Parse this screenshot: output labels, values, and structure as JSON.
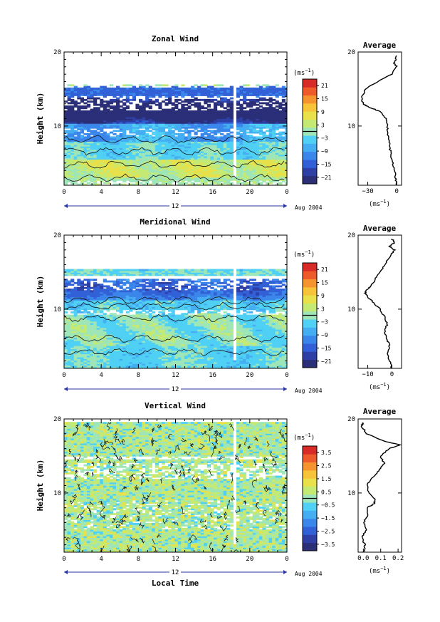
{
  "chart_data": [
    {
      "type": "heatmap",
      "title": "Zonal Wind",
      "ylabel": "Height (km)",
      "xlabel": "",
      "x_ticks": [
        "0",
        "4",
        "8",
        "12",
        "16",
        "20",
        "0"
      ],
      "y_ticks": [
        "10",
        "20"
      ],
      "xlim": [
        0,
        24
      ],
      "ylim": [
        2,
        20
      ],
      "day_label": "12",
      "date_label": "Aug 2004",
      "colorbar": {
        "unit_label": "(ms",
        "unit_exp": "−1",
        "unit_close": ")",
        "tick_labels": [
          "21",
          "15",
          "9",
          "3",
          "−3",
          "−9",
          "−15",
          "−21"
        ],
        "range": [
          -24,
          24
        ],
        "colors": [
          "#2a2f78",
          "#2e3fa6",
          "#3260d6",
          "#3a86ea",
          "#45aef2",
          "#4fd0f4",
          "#9ee6b8",
          "#c4ea74",
          "#e8e14a",
          "#f7c338",
          "#f5932e",
          "#ee5a2a",
          "#d82a26"
        ]
      },
      "average": {
        "title": "Average",
        "unit_label": "(ms",
        "unit_exp": "−1",
        "unit_close": ")",
        "x_ticks": [
          "−30",
          "0"
        ],
        "xlim": [
          -40,
          5
        ],
        "y_ticks": [
          "10",
          "20"
        ],
        "heights": [
          2,
          3,
          4,
          5,
          6,
          7,
          8,
          9,
          10,
          11,
          12,
          12.5,
          13,
          14,
          15,
          16,
          17,
          18,
          18.5,
          19,
          19.5
        ],
        "values": [
          0,
          -1,
          -2,
          -4,
          -6,
          -7,
          -8,
          -9,
          -10,
          -11,
          -18,
          -28,
          -35,
          -36,
          -32,
          -20,
          -5,
          0,
          -3,
          -1,
          0
        ]
      }
    },
    {
      "type": "heatmap",
      "title": "Meridional Wind",
      "ylabel": "Height (km)",
      "xlabel": "",
      "x_ticks": [
        "0",
        "4",
        "8",
        "12",
        "16",
        "20",
        "0"
      ],
      "y_ticks": [
        "10",
        "20"
      ],
      "xlim": [
        0,
        24
      ],
      "ylim": [
        2,
        20
      ],
      "day_label": "12",
      "date_label": "Aug 2004",
      "colorbar": {
        "unit_label": "(ms",
        "unit_exp": "−1",
        "unit_close": ")",
        "tick_labels": [
          "21",
          "15",
          "9",
          "3",
          "−3",
          "−9",
          "−15",
          "−21"
        ],
        "range": [
          -24,
          24
        ],
        "colors": [
          "#2a2f78",
          "#2e3fa6",
          "#3260d6",
          "#3a86ea",
          "#45aef2",
          "#4fd0f4",
          "#9ee6b8",
          "#c4ea74",
          "#e8e14a",
          "#f7c338",
          "#f5932e",
          "#ee5a2a",
          "#d82a26"
        ]
      },
      "average": {
        "title": "Average",
        "unit_label": "(ms",
        "unit_exp": "−1",
        "unit_close": ")",
        "x_ticks": [
          "−10",
          "0"
        ],
        "xlim": [
          -14,
          4
        ],
        "y_ticks": [
          "10",
          "20"
        ],
        "heights": [
          2,
          3,
          4,
          5,
          6,
          7,
          8,
          9,
          10,
          11,
          12,
          12.5,
          13,
          14,
          15,
          16,
          17,
          18,
          18.5,
          19,
          19.5
        ],
        "values": [
          0,
          -1,
          -2,
          -1,
          -2,
          -3,
          -2,
          -3,
          -5,
          -8,
          -11,
          -11,
          -9,
          -7,
          -5,
          -3,
          -1,
          1,
          -1,
          1,
          0
        ]
      }
    },
    {
      "type": "heatmap",
      "title": "Vertical Wind",
      "ylabel": "Height (km)",
      "xlabel": "Local Time",
      "x_ticks": [
        "0",
        "4",
        "8",
        "12",
        "16",
        "20",
        "0"
      ],
      "y_ticks": [
        "10",
        "20"
      ],
      "xlim": [
        0,
        24
      ],
      "ylim": [
        2,
        20
      ],
      "day_label": "12",
      "date_label": "Aug 2004",
      "colorbar": {
        "unit_label": "(ms",
        "unit_exp": "−1",
        "unit_close": ")",
        "tick_labels": [
          "3.5",
          "2.5",
          "1.5",
          "0.5",
          "−0.5",
          "−1.5",
          "−2.5",
          "−3.5"
        ],
        "range": [
          -4,
          4
        ],
        "colors": [
          "#2a2f78",
          "#2e3fa6",
          "#3260d6",
          "#3a86ea",
          "#45aef2",
          "#4fd0f4",
          "#9ee6b8",
          "#c4ea74",
          "#e8e14a",
          "#f7c338",
          "#f5932e",
          "#ee5a2a",
          "#d82a26"
        ]
      },
      "average": {
        "title": "Average",
        "unit_label": "(ms",
        "unit_exp": "−1",
        "unit_close": ")",
        "x_ticks": [
          "0.0",
          "0.1",
          "0.2"
        ],
        "xlim": [
          -0.03,
          0.22
        ],
        "y_ticks": [
          "10",
          "20"
        ],
        "heights": [
          2,
          3,
          4,
          5,
          6,
          7,
          8,
          8.5,
          9,
          10,
          11,
          12,
          13,
          14,
          15,
          16,
          16.5,
          17,
          18,
          19,
          19.5
        ],
        "values": [
          0.0,
          0.01,
          -0.01,
          0.02,
          0.0,
          0.03,
          0.02,
          0.06,
          0.07,
          0.03,
          0.02,
          0.05,
          0.09,
          0.12,
          0.1,
          0.15,
          0.21,
          0.12,
          0.02,
          -0.01,
          0.0
        ]
      }
    }
  ]
}
